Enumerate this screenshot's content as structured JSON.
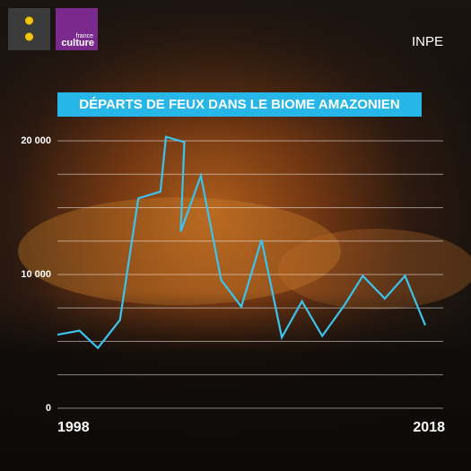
{
  "header": {
    "source": "INPE",
    "logo_top": "france",
    "logo_bottom": "culture"
  },
  "chart_data": {
    "type": "line",
    "title": "DÉPARTS DE FEUX DANS LE BIOME AMAZONIEN",
    "color": "#3cc3ee",
    "x": [
      1998.0,
      1999.2,
      2000.2,
      2001.4,
      2002.4,
      2003.6,
      2003.9,
      2004.9,
      2004.7,
      2005.8,
      2006.9,
      2008.0,
      2009.1,
      2010.2,
      2011.3,
      2012.4,
      2013.6,
      2014.6,
      2015.8,
      2016.9,
      2018.0
    ],
    "values": [
      5500,
      5800,
      4500,
      6600,
      15700,
      16200,
      20300,
      19900,
      13200,
      17400,
      9600,
      7600,
      12600,
      5300,
      8000,
      5400,
      7700,
      9900,
      8200,
      9900,
      6200
    ],
    "xlim": [
      1998,
      2018
    ],
    "xticks": [
      1998,
      2018
    ],
    "ylim": [
      0,
      20000
    ],
    "yticks": [
      0,
      {
        "value": 10000,
        "label": "10 000"
      },
      {
        "value": 20000,
        "label": "20 000"
      }
    ],
    "minor_yticks": [
      2500,
      5000,
      7500,
      12500,
      15000,
      17500
    ],
    "grid": true
  }
}
